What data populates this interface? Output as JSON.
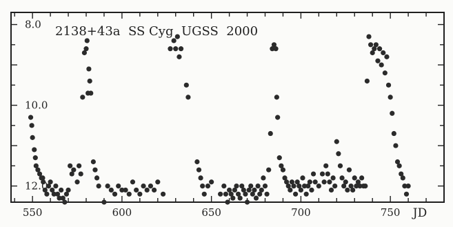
{
  "chart_data": {
    "type": "scatter",
    "title": "2138+43a  SS Cyg  UGSS  2000",
    "xlabel": "JD",
    "ylabel": "",
    "xlim": [
      538,
      780
    ],
    "ylim": [
      12.4,
      7.7
    ],
    "y_inverted": true,
    "grid": false,
    "legend": "none",
    "x_ticks": [
      550,
      600,
      650,
      700,
      750
    ],
    "y_ticks": [
      8.0,
      10.0,
      12.0
    ],
    "x_tick_labels": [
      "550",
      "600",
      "650",
      "700",
      "750"
    ],
    "y_tick_labels": [
      "8.0",
      "10.0",
      "12.0"
    ],
    "point_color": "#2b2b2b",
    "frame_color": "#1f1f1f",
    "background_color": "#fbfbf9",
    "series": [
      {
        "name": "",
        "x": [
          549.0,
          549.6,
          550.0,
          551.0,
          551.6,
          552.0,
          553.0,
          554.0,
          555.0,
          555.7,
          556.0,
          557.0,
          558.0,
          559.0,
          560.0,
          561.0,
          562.0,
          563.0,
          564.0,
          565.0,
          566.0,
          567.0,
          568.0,
          569.0,
          570.0,
          571.0,
          572.0,
          573.0,
          575.0,
          576.0,
          577.0,
          578.0,
          579.0,
          580.0,
          580.5,
          581.0,
          581.5,
          582.0,
          582.6,
          584.0,
          585.0,
          586.0,
          587.0,
          590.0,
          592.0,
          594.0,
          596.0,
          598.0,
          600.0,
          602.0,
          604.0,
          606.0,
          608.0,
          610.0,
          612.0,
          614.0,
          616.0,
          618.0,
          620.0,
          623.0,
          627.0,
          629.0,
          630.0,
          631.0,
          632.0,
          633.0,
          636.0,
          637.0,
          642.0,
          643.0,
          644.0,
          645.0,
          646.0,
          648.0,
          650.0,
          655.0,
          657.0,
          658.0,
          659.0,
          660.0,
          661.0,
          662.0,
          663.0,
          664.0,
          665.0,
          666.0,
          667.0,
          668.0,
          669.0,
          670.0,
          671.0,
          672.0,
          673.0,
          674.0,
          675.0,
          676.0,
          677.0,
          678.0,
          679.0,
          680.0,
          681.0,
          682.0,
          683.0,
          684.0,
          685.0,
          686.0,
          686.5,
          687.0,
          688.0,
          689.0,
          690.0,
          691.0,
          692.0,
          693.0,
          694.0,
          695.0,
          696.0,
          697.0,
          698.0,
          699.0,
          700.0,
          701.0,
          702.0,
          703.0,
          704.0,
          705.0,
          706.0,
          707.0,
          708.0,
          710.0,
          712.0,
          713.0,
          714.0,
          715.0,
          716.0,
          717.0,
          718.0,
          719.0,
          720.0,
          721.0,
          722.0,
          723.0,
          724.0,
          725.0,
          726.0,
          727.0,
          728.0,
          729.0,
          730.0,
          731.0,
          732.0,
          733.0,
          734.0,
          735.0,
          736.0,
          737.0,
          738.0,
          739.0,
          740.0,
          741.0,
          742.0,
          743.0,
          744.0,
          745.0,
          746.0,
          747.0,
          748.0,
          749.0,
          750.0,
          751.0,
          752.0,
          753.0,
          754.0,
          755.0,
          756.0,
          757.0,
          758.0,
          759.0,
          760.0
        ],
        "y": [
          10.3,
          10.5,
          10.8,
          11.1,
          11.3,
          11.5,
          11.6,
          11.7,
          11.8,
          11.8,
          11.9,
          12.1,
          12.2,
          12.0,
          11.9,
          12.1,
          12.2,
          12.0,
          12.2,
          12.3,
          12.1,
          12.3,
          12.4,
          12.2,
          12.1,
          11.5,
          11.7,
          11.6,
          11.9,
          11.5,
          11.7,
          9.8,
          8.7,
          8.6,
          8.4,
          9.7,
          9.1,
          9.4,
          9.7,
          11.4,
          11.6,
          11.8,
          12.0,
          12.4,
          12.0,
          12.1,
          12.2,
          12.0,
          12.1,
          12.1,
          12.2,
          11.9,
          12.1,
          12.2,
          12.0,
          12.1,
          12.0,
          12.1,
          11.9,
          12.2,
          8.6,
          8.4,
          8.6,
          8.3,
          8.8,
          8.6,
          9.5,
          9.8,
          11.4,
          11.6,
          11.8,
          12.0,
          12.2,
          12.0,
          11.9,
          12.2,
          12.0,
          12.2,
          12.4,
          12.1,
          12.2,
          12.3,
          12.1,
          12.0,
          12.2,
          12.3,
          12.0,
          12.1,
          12.2,
          12.4,
          12.1,
          12.0,
          12.2,
          12.1,
          12.3,
          12.0,
          12.2,
          12.1,
          11.8,
          12.0,
          12.2,
          11.6,
          10.7,
          8.6,
          8.5,
          8.6,
          9.8,
          10.3,
          11.3,
          11.5,
          11.6,
          11.8,
          11.9,
          12.0,
          12.1,
          11.9,
          12.0,
          12.2,
          11.9,
          12.0,
          12.1,
          11.8,
          12.0,
          12.2,
          12.0,
          11.9,
          12.1,
          11.7,
          11.9,
          12.0,
          11.7,
          11.9,
          11.5,
          11.7,
          11.9,
          12.1,
          11.8,
          12.0,
          10.9,
          11.2,
          11.5,
          11.8,
          12.0,
          11.9,
          12.1,
          11.6,
          12.0,
          12.1,
          11.8,
          12.0,
          11.9,
          12.0,
          11.8,
          12.0,
          12.0,
          9.4,
          8.3,
          8.5,
          8.7,
          8.6,
          8.5,
          8.9,
          8.6,
          9.0,
          8.7,
          9.2,
          8.8,
          9.5,
          9.8,
          10.2,
          10.7,
          11.0,
          11.4,
          11.5,
          11.7,
          11.8,
          12.0,
          12.2,
          12.0
        ]
      }
    ]
  }
}
